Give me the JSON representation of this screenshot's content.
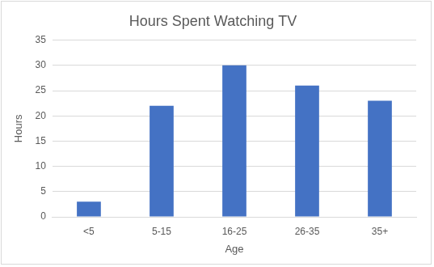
{
  "chart_data": {
    "type": "bar",
    "title": "Hours Spent Watching TV",
    "xlabel": "Age",
    "ylabel": "Hours",
    "categories": [
      "<5",
      "5-15",
      "16-25",
      "26-35",
      "35+"
    ],
    "values": [
      3,
      22,
      30,
      26,
      23
    ],
    "color": "#4472c4",
    "ylim": [
      0,
      35
    ],
    "yticks": [
      0,
      5,
      10,
      15,
      20,
      25,
      30,
      35
    ],
    "grid": true
  }
}
